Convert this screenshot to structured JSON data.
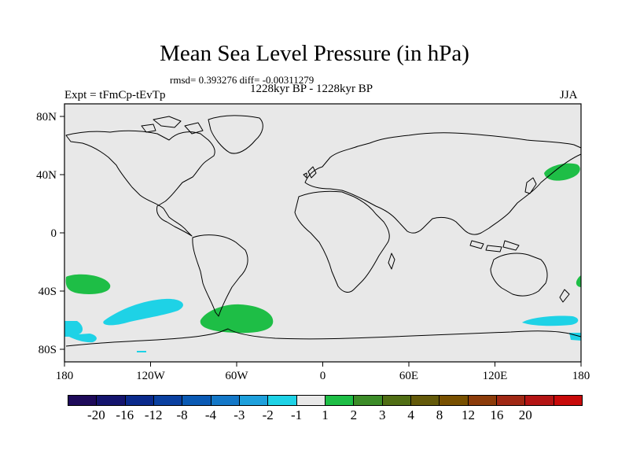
{
  "title": "Mean Sea Level Pressure (in hPa)",
  "stats": "rmsd= 0.393276 diff= -0.00311279",
  "left_label": "Expt = tFmCp-tEvTp",
  "center_label": "1228kyr BP - 1228kyr BP",
  "right_label": "JJA",
  "map": {
    "lon_ticks": [
      "180",
      "120W",
      "60W",
      "0",
      "60E",
      "120E",
      "180"
    ],
    "lat_ticks": [
      "80N",
      "40N",
      "0",
      "40S",
      "80S"
    ],
    "land_color": "#e8e8e8"
  },
  "colorbar": {
    "colors": [
      "#1e0a5a",
      "#14146e",
      "#0a2a8c",
      "#0a40a0",
      "#0a5ab4",
      "#1478c8",
      "#1ea0dc",
      "#1ed2e6",
      "#e8e8e8",
      "#1ebe46",
      "#3c8c28",
      "#506e14",
      "#645a0a",
      "#785000",
      "#8c3c0a",
      "#a02814",
      "#b41414",
      "#c80a0a"
    ],
    "labels": [
      "-20",
      "-16",
      "-12",
      "-8",
      "-4",
      "-3",
      "-2",
      "-1",
      "1",
      "2",
      "3",
      "4",
      "8",
      "12",
      "16",
      "20"
    ]
  }
}
